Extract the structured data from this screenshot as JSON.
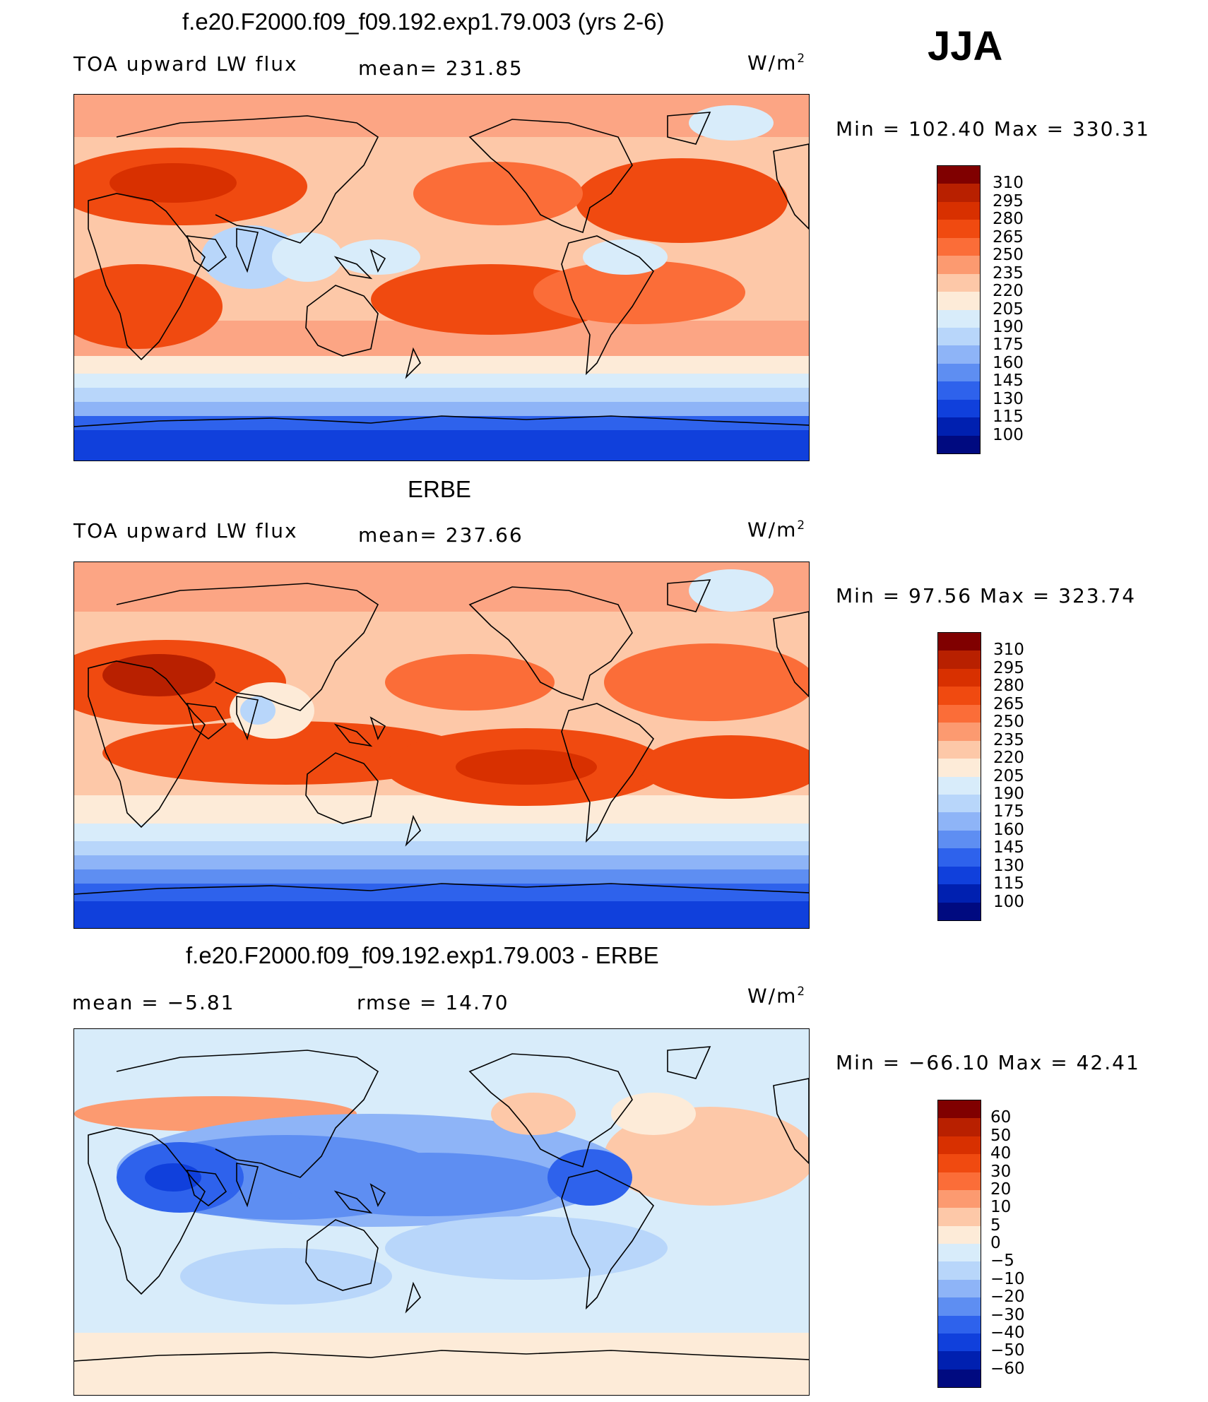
{
  "season": "JJA",
  "panel1": {
    "title": "f.e20.F2000.f09_f09.192.exp1.79.003 (yrs 2-6)",
    "left": "TOA upward LW flux",
    "center": "mean=  231.85",
    "units_base": "W/m",
    "units_exp": "2",
    "minmax": "Min  =  102.40  Max  =  330.31"
  },
  "panel2": {
    "title": "ERBE",
    "left": "TOA upward LW flux",
    "center": "mean=  237.66",
    "units_base": "W/m",
    "units_exp": "2",
    "minmax": "Min  =    97.56  Max  =  323.74"
  },
  "panel3": {
    "title": "f.e20.F2000.f09_f09.192.exp1.79.003 - ERBE",
    "left": "mean  =    −5.81",
    "center": "rmse  =    14.70",
    "units_base": "W/m",
    "units_exp": "2",
    "minmax": "Min  = −66.10  Max  =    42.41"
  },
  "colorbar_abs": {
    "levels": [
      "310",
      "295",
      "280",
      "265",
      "250",
      "235",
      "220",
      "205",
      "190",
      "175",
      "160",
      "145",
      "130",
      "115",
      "100"
    ],
    "colors": [
      "#800000",
      "#b82000",
      "#d83000",
      "#f04a10",
      "#fb6d38",
      "#fc9a70",
      "#fdc8a8",
      "#fdebd8",
      "#d8ecfa",
      "#b8d6fa",
      "#8eb4f7",
      "#5e8ef2",
      "#2e62ec",
      "#1040dc",
      "#0020b0",
      "#000a80"
    ]
  },
  "colorbar_diff": {
    "levels": [
      "60",
      "50",
      "40",
      "30",
      "20",
      "10",
      "5",
      "0",
      "−5",
      "−10",
      "−20",
      "−30",
      "−40",
      "−50",
      "−60"
    ],
    "colors": [
      "#800000",
      "#b82000",
      "#d83000",
      "#f04a10",
      "#fb6d38",
      "#fc9a70",
      "#fdc8a8",
      "#fdebd8",
      "#d8ecfa",
      "#b8d6fa",
      "#8eb4f7",
      "#5e8ef2",
      "#2e62ec",
      "#1040dc",
      "#0020b0",
      "#000a80"
    ]
  }
}
